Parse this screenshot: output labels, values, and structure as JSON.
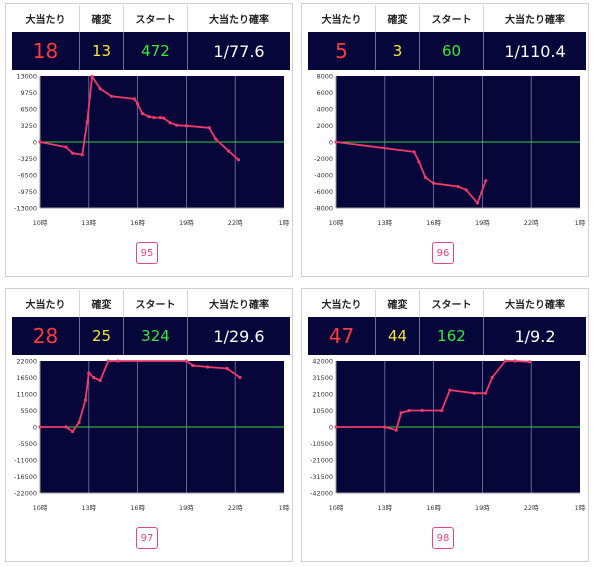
{
  "headers": {
    "hits": "大当たり",
    "kakuhen": "確変",
    "start": "スタート",
    "prob": "大当たり確率"
  },
  "colors": {
    "panel": "#06063a",
    "line": "#ef3a6a",
    "zero": "#3ad13a",
    "hits": "#ff3b3b",
    "kakuhen": "#f6e53a",
    "start": "#39e839",
    "button": "#e2487a"
  },
  "machines": [
    {
      "hits": "18",
      "kakuhen": "13",
      "start": "472",
      "prob": "1/77.6",
      "page": "95"
    },
    {
      "hits": "5",
      "kakuhen": "3",
      "start": "60",
      "prob": "1/110.4",
      "page": "96"
    },
    {
      "hits": "28",
      "kakuhen": "25",
      "start": "324",
      "prob": "1/29.6",
      "page": "97"
    },
    {
      "hits": "47",
      "kakuhen": "44",
      "start": "162",
      "prob": "1/9.2",
      "page": "98"
    }
  ],
  "chart_data": [
    {
      "type": "line",
      "ylim": [
        -13000,
        13000
      ],
      "yticks": [
        "13000",
        "9750",
        "6500",
        "3250",
        "0",
        "-3250",
        "-6500",
        "-9750",
        "-13000"
      ],
      "xticks": [
        "10時",
        "13時",
        "16時",
        "19時",
        "22時",
        "1時"
      ],
      "x": [
        10,
        11.6,
        12,
        12.6,
        12.9,
        13.2,
        13.7,
        14.4,
        15.8,
        16,
        16.3,
        16.7,
        17,
        17.4,
        17.6,
        18,
        18.4,
        19,
        20.4,
        20.8,
        21.6,
        22.2
      ],
      "y": [
        0,
        -1000,
        -2200,
        -2500,
        4000,
        12900,
        10500,
        9000,
        8500,
        7500,
        5600,
        5000,
        4800,
        4800,
        4700,
        3800,
        3300,
        3200,
        2800,
        600,
        -1800,
        -3500
      ]
    },
    {
      "type": "line",
      "ylim": [
        -8000,
        8000
      ],
      "yticks": [
        "8000",
        "6000",
        "4000",
        "2000",
        "0",
        "-2000",
        "-4000",
        "-6000",
        "-8000"
      ],
      "xticks": [
        "10時",
        "13時",
        "16時",
        "19時",
        "22時",
        "1時"
      ],
      "x": [
        10,
        14.8,
        15.1,
        15.5,
        16,
        17.5,
        18,
        18.7,
        19.2
      ],
      "y": [
        0,
        -1200,
        -2400,
        -4300,
        -5000,
        -5400,
        -5800,
        -7400,
        -4700
      ]
    },
    {
      "type": "line",
      "ylim": [
        -22000,
        22000
      ],
      "yticks": [
        "22000",
        "16500",
        "11000",
        "5500",
        "0",
        "-5500",
        "-11000",
        "-16500",
        "-22000"
      ],
      "xticks": [
        "10時",
        "13時",
        "16時",
        "19時",
        "22時",
        "1時"
      ],
      "x": [
        10,
        11.6,
        12,
        12.4,
        12.8,
        13,
        13.3,
        13.7,
        14.2,
        14.8,
        19,
        19.4,
        20.3,
        21.5,
        22.3
      ],
      "y": [
        0,
        0,
        -1500,
        1500,
        9000,
        18000,
        16500,
        15500,
        22000,
        22000,
        22000,
        20500,
        20000,
        19500,
        16500
      ]
    },
    {
      "type": "line",
      "ylim": [
        -42000,
        42000
      ],
      "yticks": [
        "42000",
        "31500",
        "21000",
        "10500",
        "0",
        "-10500",
        "-21000",
        "-31500",
        "-42000"
      ],
      "xticks": [
        "10時",
        "13時",
        "16時",
        "19時",
        "22時",
        "1時"
      ],
      "x": [
        10,
        13,
        13.7,
        14,
        14.5,
        15.3,
        16.5,
        17,
        18.5,
        19.2,
        19.6,
        20.4,
        21,
        21.9
      ],
      "y": [
        0,
        0,
        -2000,
        9000,
        10500,
        10500,
        10500,
        23500,
        21500,
        21500,
        31500,
        42000,
        42000,
        41500
      ]
    }
  ]
}
